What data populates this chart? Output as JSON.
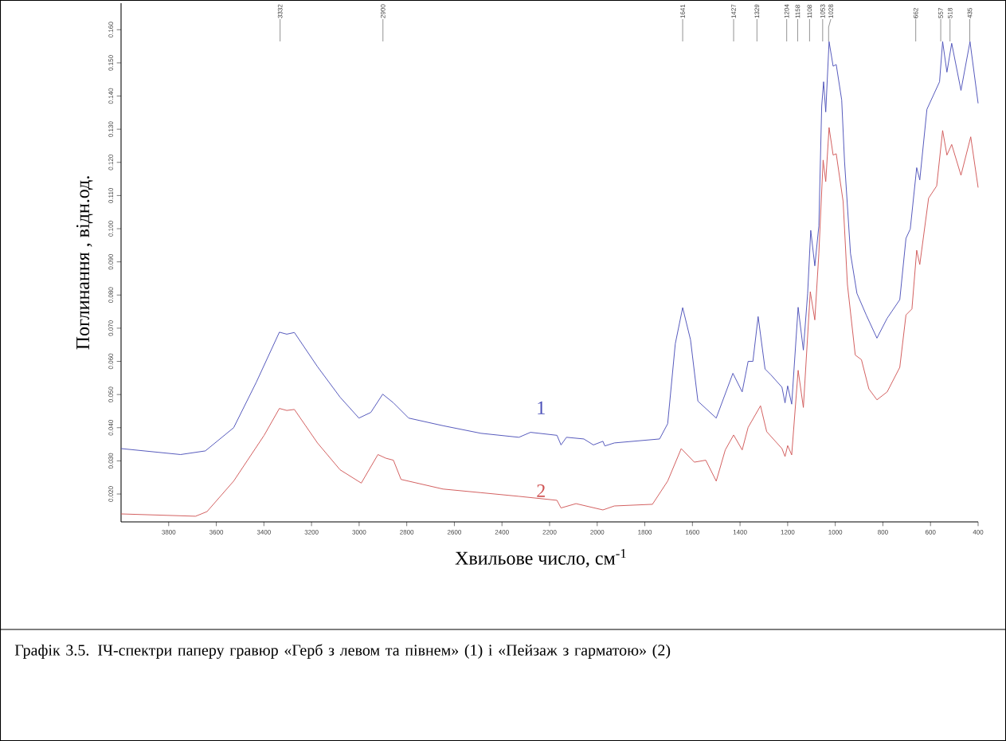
{
  "chart_data": {
    "type": "line",
    "xlabel": "Хвильове число, см$^{-1}$",
    "ylabel": "Поглинання , відн.од.",
    "xlim": [
      4000,
      400
    ],
    "ylim": [
      0.0116,
      0.168
    ],
    "xticks": [
      3800,
      3600,
      3400,
      3200,
      3000,
      2800,
      2600,
      2400,
      2200,
      2000,
      1800,
      1600,
      1400,
      1200,
      1000,
      800,
      600,
      400
    ],
    "yticks": [
      {
        "value": 0.02,
        "label": "0.020"
      },
      {
        "value": 0.03,
        "label": "0.030"
      },
      {
        "value": 0.04,
        "label": "0.040"
      },
      {
        "value": 0.05,
        "label": "0.050"
      },
      {
        "value": 0.06,
        "label": "0.060"
      },
      {
        "value": 0.07,
        "label": "0.070"
      },
      {
        "value": 0.08,
        "label": "0.080"
      },
      {
        "value": 0.09,
        "label": "0.090"
      },
      {
        "value": 0.1,
        "label": "0.100"
      },
      {
        "value": 0.11,
        "label": "0.110"
      },
      {
        "value": 0.12,
        "label": "0.120"
      },
      {
        "value": 0.13,
        "label": "0.130"
      },
      {
        "value": 0.14,
        "label": "0.140"
      },
      {
        "value": 0.15,
        "label": "0.150"
      },
      {
        "value": 0.16,
        "label": "0.160"
      }
    ],
    "series": [
      {
        "name": "1",
        "color": "#4a4fb8",
        "x": [
          4000,
          3750,
          3646,
          3527,
          3432,
          3335,
          3304,
          3272,
          3175,
          3080,
          3001,
          2951,
          2901,
          2856,
          2792,
          2648,
          2488,
          2329,
          2280,
          2169,
          2152,
          2129,
          2056,
          2016,
          1976,
          1968,
          1928,
          1738,
          1704,
          1672,
          1641,
          1608,
          1577,
          1500,
          1430,
          1391,
          1366,
          1346,
          1324,
          1295,
          1270,
          1224,
          1211,
          1200,
          1183,
          1156,
          1134,
          1116,
          1103,
          1086,
          1069,
          1057,
          1049,
          1040,
          1026,
          1009,
          996,
          973,
          961,
          936,
          909,
          870,
          825,
          782,
          729,
          703,
          685,
          658,
          645,
          615,
          562,
          549,
          531,
          511,
          472,
          434,
          400
        ],
        "values": [
          0.0337,
          0.0319,
          0.033,
          0.04,
          0.0537,
          0.0688,
          0.0682,
          0.0687,
          0.0584,
          0.0492,
          0.0429,
          0.0446,
          0.0501,
          0.0475,
          0.0429,
          0.0406,
          0.0383,
          0.0371,
          0.0386,
          0.0377,
          0.0348,
          0.0371,
          0.0366,
          0.0348,
          0.0359,
          0.0345,
          0.0354,
          0.0366,
          0.0412,
          0.0653,
          0.0762,
          0.0665,
          0.048,
          0.0429,
          0.0564,
          0.0508,
          0.06,
          0.06,
          0.0735,
          0.0577,
          0.0559,
          0.0522,
          0.0475,
          0.0526,
          0.0471,
          0.0763,
          0.0634,
          0.0805,
          0.0995,
          0.0888,
          0.1008,
          0.137,
          0.1443,
          0.1352,
          0.1564,
          0.149,
          0.1495,
          0.1388,
          0.1202,
          0.0925,
          0.0805,
          0.074,
          0.067,
          0.073,
          0.0786,
          0.0971,
          0.0999,
          0.1184,
          0.1147,
          0.136,
          0.1443,
          0.1564,
          0.1472,
          0.1559,
          0.1417,
          0.1564,
          0.1378
        ]
      },
      {
        "name": "2",
        "color": "#d05555",
        "x": [
          4000,
          3687,
          3639,
          3527,
          3399,
          3335,
          3304,
          3272,
          3175,
          3080,
          2991,
          2921,
          2888,
          2856,
          2824,
          2648,
          2488,
          2329,
          2169,
          2152,
          2089,
          1976,
          1928,
          1768,
          1704,
          1647,
          1592,
          1544,
          1500,
          1462,
          1427,
          1391,
          1366,
          1314,
          1288,
          1224,
          1211,
          1200,
          1183,
          1156,
          1134,
          1105,
          1086,
          1069,
          1051,
          1040,
          1026,
          1009,
          996,
          967,
          949,
          916,
          890,
          859,
          825,
          782,
          729,
          703,
          678,
          658,
          645,
          608,
          574,
          549,
          531,
          511,
          472,
          431,
          400
        ],
        "values": [
          0.014,
          0.0133,
          0.0147,
          0.0239,
          0.0377,
          0.0458,
          0.0452,
          0.0455,
          0.0354,
          0.0273,
          0.0233,
          0.0319,
          0.0308,
          0.0302,
          0.0244,
          0.0215,
          0.0204,
          0.0193,
          0.0181,
          0.0158,
          0.0171,
          0.0152,
          0.0164,
          0.0169,
          0.0239,
          0.0337,
          0.0296,
          0.0302,
          0.0239,
          0.0333,
          0.0378,
          0.0333,
          0.0401,
          0.0466,
          0.0388,
          0.0337,
          0.0313,
          0.0346,
          0.0318,
          0.0573,
          0.0461,
          0.081,
          0.0725,
          0.0925,
          0.1207,
          0.1142,
          0.1305,
          0.1222,
          0.1226,
          0.1082,
          0.0832,
          0.0619,
          0.0605,
          0.0517,
          0.0484,
          0.0508,
          0.0582,
          0.074,
          0.0758,
          0.0935,
          0.0892,
          0.1092,
          0.1129,
          0.1296,
          0.1222,
          0.1254,
          0.1161,
          0.1277,
          0.1124
        ]
      }
    ],
    "annotations": [
      {
        "text": "3332",
        "x": 3332
      },
      {
        "text": "2900",
        "x": 2900
      },
      {
        "text": "1641",
        "x": 1641
      },
      {
        "text": "1427",
        "x": 1427
      },
      {
        "text": "1329",
        "x": 1329
      },
      {
        "text": "1204",
        "x": 1204
      },
      {
        "text": "1158",
        "x": 1158
      },
      {
        "text": "1108",
        "x": 1108
      },
      {
        "text": "1053",
        "x": 1053
      },
      {
        "text": "1028",
        "x": 1028
      },
      {
        "text": "662",
        "x": 662
      },
      {
        "text": "557",
        "x": 557
      },
      {
        "text": "518",
        "x": 518
      },
      {
        "text": "435",
        "x": 435
      },
      "Графік 3.5. ІЧ-спектри паперу гравюр «Герб з левом та півнем» (1) і «Пейзаж з гарматою» (2)"
    ]
  }
}
